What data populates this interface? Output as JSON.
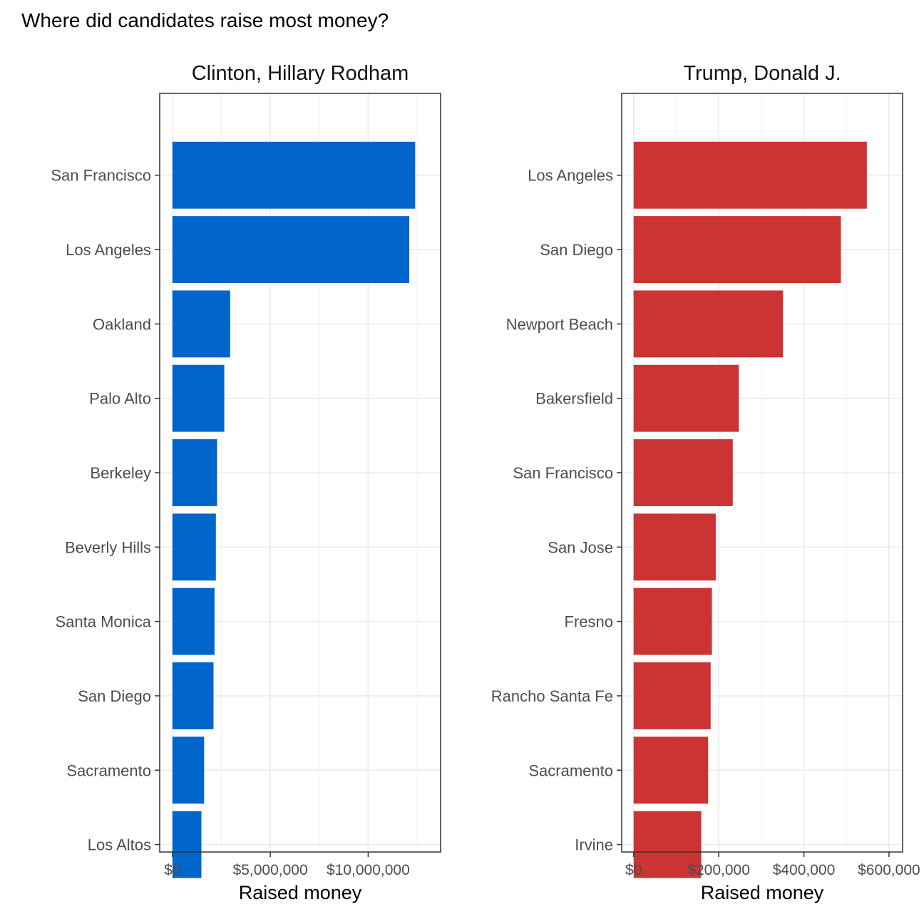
{
  "title": "Where did candidates raise most money?",
  "chart_data": [
    {
      "type": "bar",
      "orientation": "horizontal",
      "title": "Clinton, Hillary Rodham",
      "xlabel": "Raised money",
      "ylabel": "",
      "color": "#0066cc",
      "categories": [
        "San Francisco",
        "Los Angeles",
        "Oakland",
        "Palo Alto",
        "Berkeley",
        "Beverly Hills",
        "Santa Monica",
        "San Diego",
        "Sacramento",
        "Los Altos"
      ],
      "values": [
        12400000,
        12100000,
        2950000,
        2650000,
        2280000,
        2220000,
        2150000,
        2100000,
        1620000,
        1480000
      ],
      "xlim": [
        -650000,
        13700000
      ],
      "xticks": [
        0,
        5000000,
        10000000
      ],
      "xtick_labels": [
        "$0",
        "$5,000,000",
        "$10,000,000"
      ],
      "grid": true
    },
    {
      "type": "bar",
      "orientation": "horizontal",
      "title": "Trump, Donald J.",
      "xlabel": "Raised money",
      "ylabel": "",
      "color": "#cc3333",
      "categories": [
        "Los Angeles",
        "San Diego",
        "Newport Beach",
        "Bakersfield",
        "San Francisco",
        "San Jose",
        "Fresno",
        "Rancho Santa Fe",
        "Sacramento",
        "Irvine"
      ],
      "values": [
        548000,
        487000,
        351000,
        247000,
        233000,
        193000,
        184000,
        181000,
        175000,
        159000
      ],
      "xlim": [
        -28000,
        632000
      ],
      "xticks": [
        0,
        200000,
        400000,
        600000
      ],
      "xtick_labels": [
        "$0",
        "$200,000",
        "$400,000",
        "$600,000"
      ],
      "grid": true
    }
  ]
}
